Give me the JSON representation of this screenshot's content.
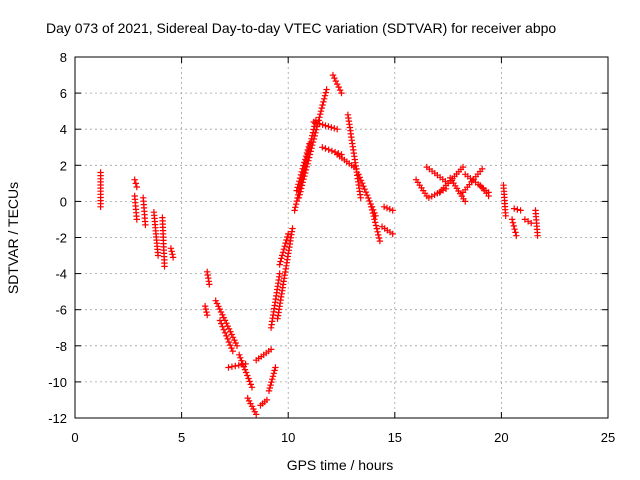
{
  "chart_data": {
    "type": "scatter",
    "title": "Day 073 of 2021, Sidereal Day-to-day VTEC variation (SDTVAR) for receiver abpo",
    "xlabel": "GPS time / hours",
    "ylabel": "SDTVAR / TECUs",
    "xlim": [
      0,
      25
    ],
    "ylim": [
      -12,
      8
    ],
    "xticks": [
      0,
      5,
      10,
      15,
      20,
      25
    ],
    "yticks": [
      -12,
      -10,
      -8,
      -6,
      -4,
      -2,
      0,
      2,
      4,
      6,
      8
    ],
    "xtick_labels": [
      "0",
      "5",
      "10",
      "15",
      "20",
      "25"
    ],
    "ytick_labels": [
      "-12",
      "-10",
      "-8",
      "-6",
      "-4",
      "-2",
      "0",
      "2",
      "4",
      "6",
      "8"
    ],
    "grid": true,
    "marker": "+",
    "color": "#ff0000",
    "series": [
      {
        "name": "SDTVAR",
        "segments": [
          {
            "x": [
              1.2,
              1.2
            ],
            "y": [
              -0.3,
              1.6
            ]
          },
          {
            "x": [
              2.8,
              2.9
            ],
            "y": [
              1.2,
              0.8
            ]
          },
          {
            "x": [
              2.8,
              2.9
            ],
            "y": [
              0.3,
              -1.0
            ]
          },
          {
            "x": [
              3.2,
              3.3
            ],
            "y": [
              0.2,
              -1.3
            ]
          },
          {
            "x": [
              3.7,
              3.9
            ],
            "y": [
              -0.6,
              -3.0
            ]
          },
          {
            "x": [
              4.1,
              4.2
            ],
            "y": [
              -0.9,
              -3.6
            ]
          },
          {
            "x": [
              4.5,
              4.6
            ],
            "y": [
              -2.6,
              -3.1
            ]
          },
          {
            "x": [
              6.2,
              6.3
            ],
            "y": [
              -3.9,
              -4.6
            ]
          },
          {
            "x": [
              6.1,
              6.2
            ],
            "y": [
              -5.8,
              -6.3
            ]
          },
          {
            "x": [
              6.6,
              7.6
            ],
            "y": [
              -5.5,
              -8.0
            ]
          },
          {
            "x": [
              6.8,
              7.4
            ],
            "y": [
              -6.6,
              -8.3
            ]
          },
          {
            "x": [
              7.7,
              8.3
            ],
            "y": [
              -8.5,
              -10.3
            ]
          },
          {
            "x": [
              7.2,
              8.0
            ],
            "y": [
              -9.2,
              -9.0
            ]
          },
          {
            "x": [
              8.1,
              8.5
            ],
            "y": [
              -10.9,
              -11.8
            ]
          },
          {
            "x": [
              8.5,
              9.2
            ],
            "y": [
              -8.8,
              -8.2
            ]
          },
          {
            "x": [
              8.7,
              9.0
            ],
            "y": [
              -11.3,
              -11.0
            ]
          },
          {
            "x": [
              9.1,
              9.4
            ],
            "y": [
              -10.5,
              -9.2
            ]
          },
          {
            "x": [
              9.2,
              9.6
            ],
            "y": [
              -7.0,
              -4.0
            ]
          },
          {
            "x": [
              9.5,
              10.2
            ],
            "y": [
              -6.5,
              -1.5
            ]
          },
          {
            "x": [
              9.6,
              10.0
            ],
            "y": [
              -3.5,
              -1.8
            ]
          },
          {
            "x": [
              10.3,
              11.3
            ],
            "y": [
              -0.5,
              4.5
            ]
          },
          {
            "x": [
              10.4,
              11.0
            ],
            "y": [
              0.6,
              3.2
            ]
          },
          {
            "x": [
              10.5,
              11.8
            ],
            "y": [
              0.2,
              6.2
            ]
          },
          {
            "x": [
              11.2,
              12.3
            ],
            "y": [
              4.4,
              4.0
            ]
          },
          {
            "x": [
              11.6,
              12.5
            ],
            "y": [
              3.0,
              2.6
            ]
          },
          {
            "x": [
              12.1,
              12.5
            ],
            "y": [
              7.0,
              6.0
            ]
          },
          {
            "x": [
              12.3,
              13.2
            ],
            "y": [
              2.6,
              1.8
            ]
          },
          {
            "x": [
              12.8,
              13.4
            ],
            "y": [
              4.8,
              0.2
            ]
          },
          {
            "x": [
              13.3,
              14.1
            ],
            "y": [
              1.5,
              -0.8
            ]
          },
          {
            "x": [
              13.9,
              14.3
            ],
            "y": [
              -0.3,
              -2.2
            ]
          },
          {
            "x": [
              14.4,
              14.9
            ],
            "y": [
              -1.4,
              -1.8
            ]
          },
          {
            "x": [
              14.5,
              14.9
            ],
            "y": [
              -0.3,
              -0.5
            ]
          },
          {
            "x": [
              16.0,
              16.5
            ],
            "y": [
              1.2,
              0.3
            ]
          },
          {
            "x": [
              16.5,
              17.5
            ],
            "y": [
              1.9,
              1.0
            ]
          },
          {
            "x": [
              16.6,
              17.4
            ],
            "y": [
              0.2,
              0.7
            ]
          },
          {
            "x": [
              17.1,
              18.2
            ],
            "y": [
              0.5,
              1.9
            ]
          },
          {
            "x": [
              17.6,
              18.3
            ],
            "y": [
              1.3,
              0.0
            ]
          },
          {
            "x": [
              18.2,
              19.1
            ],
            "y": [
              0.5,
              1.8
            ]
          },
          {
            "x": [
              18.3,
              19.4
            ],
            "y": [
              1.5,
              0.5
            ]
          },
          {
            "x": [
              19.0,
              19.4
            ],
            "y": [
              0.9,
              0.3
            ]
          },
          {
            "x": [
              20.1,
              20.2
            ],
            "y": [
              0.9,
              -0.8
            ]
          },
          {
            "x": [
              20.5,
              20.7
            ],
            "y": [
              -1.0,
              -1.9
            ]
          },
          {
            "x": [
              20.6,
              20.9
            ],
            "y": [
              -0.4,
              -0.5
            ]
          },
          {
            "x": [
              21.1,
              21.4
            ],
            "y": [
              -1.0,
              -1.2
            ]
          },
          {
            "x": [
              21.6,
              21.7
            ],
            "y": [
              -0.5,
              -1.9
            ]
          }
        ]
      }
    ]
  }
}
